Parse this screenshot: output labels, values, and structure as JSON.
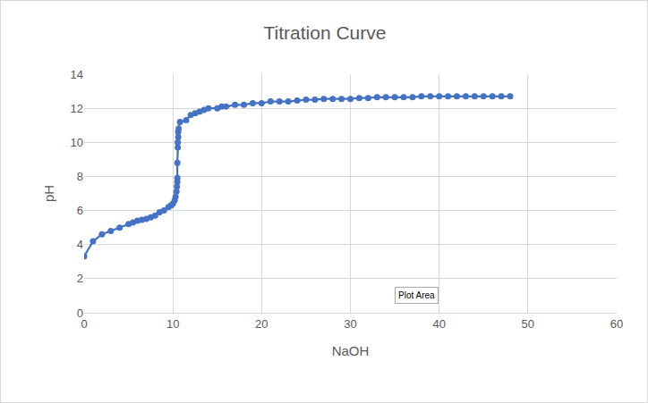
{
  "chart_data": {
    "type": "scatter",
    "title": "Titration Curve",
    "x_label": "NaOH",
    "y_label": "pH",
    "x": [
      0,
      1,
      2,
      3,
      4,
      5,
      5.5,
      6,
      6.5,
      7,
      7.5,
      8,
      8.5,
      9,
      9.5,
      9.8,
      10,
      10.2,
      10.3,
      10.4,
      10.45,
      10.5,
      10.5,
      10.5,
      10.55,
      10.55,
      10.6,
      10.6,
      10.65,
      10.8,
      11.5,
      12,
      12.5,
      13,
      13.5,
      14,
      15,
      15.5,
      16,
      17,
      18,
      19,
      20,
      21,
      22,
      23,
      24,
      25,
      26,
      27,
      28,
      29,
      30,
      31,
      32,
      33,
      34,
      35,
      36,
      37,
      38,
      39,
      40,
      41,
      42,
      43,
      44,
      45,
      46,
      47,
      48
    ],
    "values": [
      3.3,
      4.2,
      4.6,
      4.8,
      5.0,
      5.2,
      5.3,
      5.4,
      5.45,
      5.5,
      5.6,
      5.7,
      5.9,
      6.0,
      6.2,
      6.3,
      6.4,
      6.6,
      6.8,
      7.1,
      7.4,
      7.7,
      7.9,
      8.8,
      9.7,
      10.0,
      10.3,
      10.6,
      10.8,
      11.2,
      11.3,
      11.6,
      11.7,
      11.8,
      11.9,
      12.0,
      12.0,
      12.1,
      12.1,
      12.2,
      12.2,
      12.3,
      12.3,
      12.4,
      12.4,
      12.4,
      12.45,
      12.5,
      12.5,
      12.55,
      12.55,
      12.55,
      12.55,
      12.6,
      12.6,
      12.65,
      12.65,
      12.65,
      12.65,
      12.65,
      12.7,
      12.7,
      12.7,
      12.7,
      12.7,
      12.7,
      12.7,
      12.7,
      12.7,
      12.7,
      12.7
    ],
    "color": "#4472c4",
    "marker": "circle",
    "line_style": "solid",
    "xlim": [
      0,
      60
    ],
    "xticks": [
      0,
      10,
      20,
      30,
      40,
      50,
      60
    ],
    "ylim": [
      0,
      14
    ],
    "yticks": [
      0,
      2,
      4,
      6,
      8,
      10,
      12,
      14
    ],
    "grid": true,
    "annotations": [
      {
        "text": "Plot Area",
        "x": 37.5,
        "y": 1
      }
    ]
  }
}
